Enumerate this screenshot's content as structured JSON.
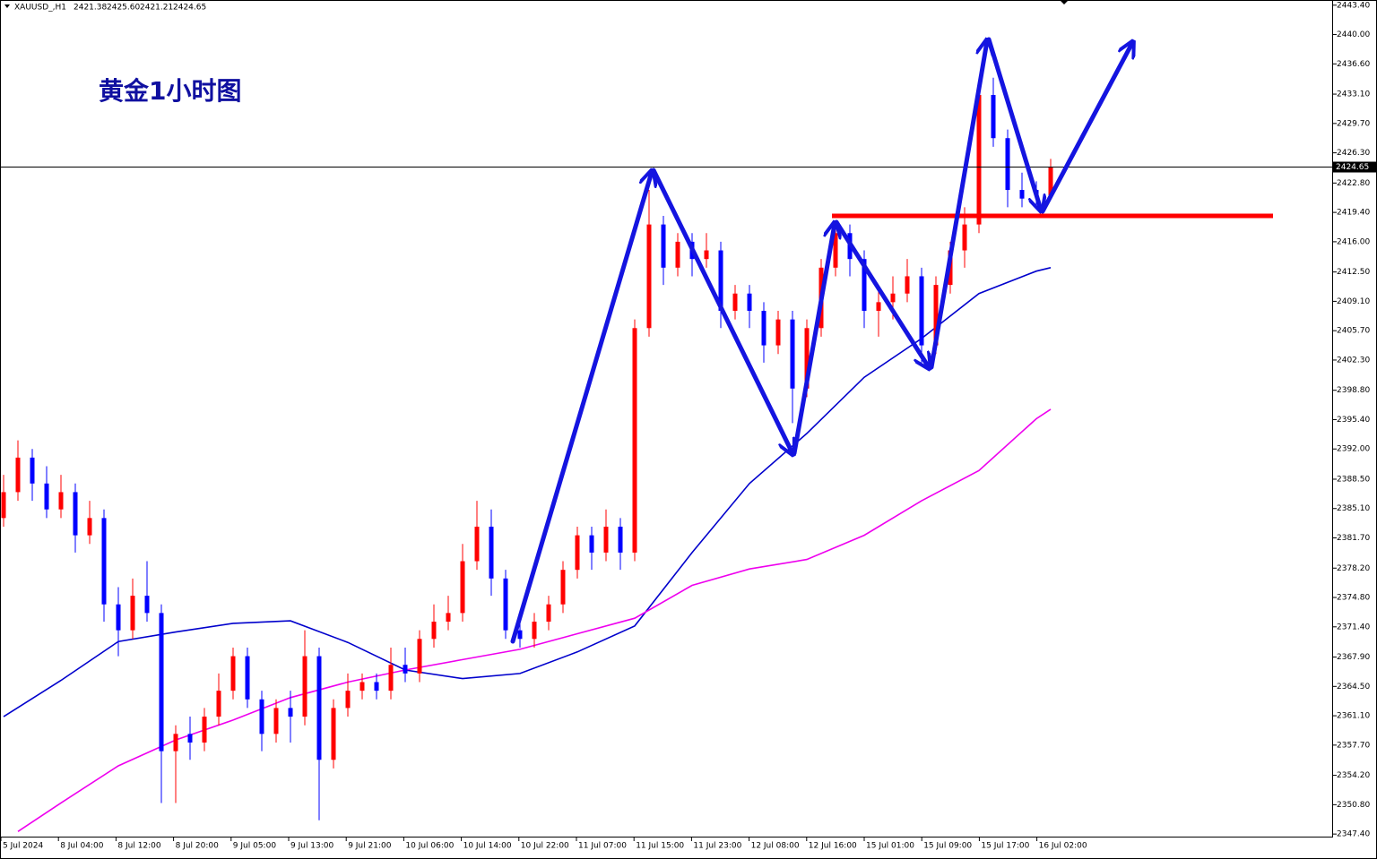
{
  "chart_data": {
    "type": "candlestick",
    "header": "XAUUSD_,H1",
    "header_values": [
      "2421.38",
      "2425.60",
      "2421.21",
      "2424.65"
    ],
    "title": "黄金1小时图",
    "up_color": "#ff0000",
    "down_color": "#0000ff",
    "ylim": [
      2347.0,
      2444.0
    ],
    "yticks": [
      {
        "value": 2443.4,
        "label": "2443.40"
      },
      {
        "value": 2440.0,
        "label": "2440.00"
      },
      {
        "value": 2436.6,
        "label": "2436.60"
      },
      {
        "value": 2433.1,
        "label": "2433.10"
      },
      {
        "value": 2429.7,
        "label": "2429.70"
      },
      {
        "value": 2426.3,
        "label": "2426.30"
      },
      {
        "value": 2422.8,
        "label": "2422.80"
      },
      {
        "value": 2419.4,
        "label": "2419.40"
      },
      {
        "value": 2416.0,
        "label": "2416.00"
      },
      {
        "value": 2412.5,
        "label": "2412.50"
      },
      {
        "value": 2409.1,
        "label": "2409.10"
      },
      {
        "value": 2405.7,
        "label": "2405.70"
      },
      {
        "value": 2402.3,
        "label": "2402.30"
      },
      {
        "value": 2398.8,
        "label": "2398.80"
      },
      {
        "value": 2395.4,
        "label": "2395.40"
      },
      {
        "value": 2392.0,
        "label": "2392.00"
      },
      {
        "value": 2388.5,
        "label": "2388.50"
      },
      {
        "value": 2385.1,
        "label": "2385.10"
      },
      {
        "value": 2381.7,
        "label": "2381.70"
      },
      {
        "value": 2378.2,
        "label": "2378.20"
      },
      {
        "value": 2374.8,
        "label": "2374.80"
      },
      {
        "value": 2371.4,
        "label": "2371.40"
      },
      {
        "value": 2367.9,
        "label": "2367.90"
      },
      {
        "value": 2364.5,
        "label": "2364.50"
      },
      {
        "value": 2361.1,
        "label": "2361.10"
      },
      {
        "value": 2357.7,
        "label": "2357.70"
      },
      {
        "value": 2354.2,
        "label": "2354.20"
      },
      {
        "value": 2350.8,
        "label": "2350.80"
      },
      {
        "value": 2347.4,
        "label": "2347.40"
      }
    ],
    "x_labels": [
      "5 Jul 2024",
      "8 Jul 04:00",
      "8 Jul 12:00",
      "8 Jul 20:00",
      "9 Jul 05:00",
      "9 Jul 13:00",
      "9 Jul 21:00",
      "10 Jul 06:00",
      "10 Jul 14:00",
      "10 Jul 22:00",
      "11 Jul 07:00",
      "11 Jul 15:00",
      "11 Jul 23:00",
      "12 Jul 08:00",
      "12 Jul 16:00",
      "15 Jul 01:00",
      "15 Jul 09:00",
      "15 Jul 17:00",
      "16 Jul 02:00"
    ],
    "current_price": {
      "value": 2424.65,
      "label": "2424.65"
    },
    "support_level": 2419.0,
    "candles": [
      {
        "o": 2384,
        "h": 2389,
        "l": 2383,
        "c": 2387
      },
      {
        "o": 2387,
        "h": 2393,
        "l": 2386,
        "c": 2391
      },
      {
        "o": 2391,
        "h": 2392,
        "l": 2386,
        "c": 2388
      },
      {
        "o": 2388,
        "h": 2390,
        "l": 2384,
        "c": 2385
      },
      {
        "o": 2385,
        "h": 2389,
        "l": 2384,
        "c": 2387
      },
      {
        "o": 2387,
        "h": 2388,
        "l": 2380,
        "c": 2382
      },
      {
        "o": 2382,
        "h": 2386,
        "l": 2381,
        "c": 2384
      },
      {
        "o": 2384,
        "h": 2385,
        "l": 2372,
        "c": 2374
      },
      {
        "o": 2374,
        "h": 2376,
        "l": 2368,
        "c": 2371
      },
      {
        "o": 2371,
        "h": 2377,
        "l": 2370,
        "c": 2375
      },
      {
        "o": 2375,
        "h": 2379,
        "l": 2372,
        "c": 2373
      },
      {
        "o": 2373,
        "h": 2374,
        "l": 2351,
        "c": 2357
      },
      {
        "o": 2357,
        "h": 2360,
        "l": 2351,
        "c": 2359
      },
      {
        "o": 2359,
        "h": 2361,
        "l": 2356,
        "c": 2358
      },
      {
        "o": 2358,
        "h": 2362,
        "l": 2357,
        "c": 2361
      },
      {
        "o": 2361,
        "h": 2366,
        "l": 2360,
        "c": 2364
      },
      {
        "o": 2364,
        "h": 2369,
        "l": 2363,
        "c": 2368
      },
      {
        "o": 2368,
        "h": 2369,
        "l": 2362,
        "c": 2363
      },
      {
        "o": 2363,
        "h": 2364,
        "l": 2357,
        "c": 2359
      },
      {
        "o": 2359,
        "h": 2363,
        "l": 2358,
        "c": 2362
      },
      {
        "o": 2362,
        "h": 2364,
        "l": 2358,
        "c": 2361
      },
      {
        "o": 2361,
        "h": 2371,
        "l": 2360,
        "c": 2368
      },
      {
        "o": 2368,
        "h": 2369,
        "l": 2349,
        "c": 2356
      },
      {
        "o": 2356,
        "h": 2363,
        "l": 2355,
        "c": 2362
      },
      {
        "o": 2362,
        "h": 2366,
        "l": 2361,
        "c": 2364
      },
      {
        "o": 2364,
        "h": 2366,
        "l": 2363,
        "c": 2365
      },
      {
        "o": 2365,
        "h": 2366,
        "l": 2363,
        "c": 2364
      },
      {
        "o": 2364,
        "h": 2369,
        "l": 2363,
        "c": 2367
      },
      {
        "o": 2367,
        "h": 2369,
        "l": 2365,
        "c": 2366
      },
      {
        "o": 2366,
        "h": 2371,
        "l": 2365,
        "c": 2370
      },
      {
        "o": 2370,
        "h": 2374,
        "l": 2369,
        "c": 2372
      },
      {
        "o": 2372,
        "h": 2375,
        "l": 2371,
        "c": 2373
      },
      {
        "o": 2373,
        "h": 2381,
        "l": 2372,
        "c": 2379
      },
      {
        "o": 2379,
        "h": 2386,
        "l": 2378,
        "c": 2383
      },
      {
        "o": 2383,
        "h": 2385,
        "l": 2375,
        "c": 2377
      },
      {
        "o": 2377,
        "h": 2378,
        "l": 2370,
        "c": 2371
      },
      {
        "o": 2371,
        "h": 2372,
        "l": 2369,
        "c": 2370
      },
      {
        "o": 2370,
        "h": 2373,
        "l": 2369,
        "c": 2372
      },
      {
        "o": 2372,
        "h": 2375,
        "l": 2371,
        "c": 2374
      },
      {
        "o": 2374,
        "h": 2379,
        "l": 2373,
        "c": 2378
      },
      {
        "o": 2378,
        "h": 2383,
        "l": 2377,
        "c": 2382
      },
      {
        "o": 2382,
        "h": 2383,
        "l": 2378,
        "c": 2380
      },
      {
        "o": 2380,
        "h": 2385,
        "l": 2379,
        "c": 2383
      },
      {
        "o": 2383,
        "h": 2384,
        "l": 2378,
        "c": 2380
      },
      {
        "o": 2380,
        "h": 2407,
        "l": 2379,
        "c": 2406
      },
      {
        "o": 2406,
        "h": 2422,
        "l": 2405,
        "c": 2418
      },
      {
        "o": 2418,
        "h": 2419,
        "l": 2411,
        "c": 2413
      },
      {
        "o": 2413,
        "h": 2417,
        "l": 2412,
        "c": 2416
      },
      {
        "o": 2416,
        "h": 2417,
        "l": 2412,
        "c": 2414
      },
      {
        "o": 2414,
        "h": 2417,
        "l": 2413,
        "c": 2415
      },
      {
        "o": 2415,
        "h": 2416,
        "l": 2406,
        "c": 2408
      },
      {
        "o": 2408,
        "h": 2411,
        "l": 2407,
        "c": 2410
      },
      {
        "o": 2410,
        "h": 2411,
        "l": 2406,
        "c": 2408
      },
      {
        "o": 2408,
        "h": 2409,
        "l": 2402,
        "c": 2404
      },
      {
        "o": 2404,
        "h": 2408,
        "l": 2403,
        "c": 2407
      },
      {
        "o": 2407,
        "h": 2408,
        "l": 2395,
        "c": 2399
      },
      {
        "o": 2399,
        "h": 2407,
        "l": 2398,
        "c": 2406
      },
      {
        "o": 2406,
        "h": 2414,
        "l": 2405,
        "c": 2413
      },
      {
        "o": 2413,
        "h": 2418,
        "l": 2412,
        "c": 2417
      },
      {
        "o": 2417,
        "h": 2418,
        "l": 2412,
        "c": 2414
      },
      {
        "o": 2414,
        "h": 2415,
        "l": 2406,
        "c": 2408
      },
      {
        "o": 2408,
        "h": 2411,
        "l": 2405,
        "c": 2409
      },
      {
        "o": 2409,
        "h": 2412,
        "l": 2407,
        "c": 2410
      },
      {
        "o": 2410,
        "h": 2414,
        "l": 2409,
        "c": 2412
      },
      {
        "o": 2412,
        "h": 2413,
        "l": 2402,
        "c": 2404
      },
      {
        "o": 2404,
        "h": 2412,
        "l": 2403,
        "c": 2411
      },
      {
        "o": 2411,
        "h": 2416,
        "l": 2410,
        "c": 2415
      },
      {
        "o": 2415,
        "h": 2420,
        "l": 2413,
        "c": 2418
      },
      {
        "o": 2418,
        "h": 2434,
        "l": 2417,
        "c": 2433
      },
      {
        "o": 2433,
        "h": 2435,
        "l": 2427,
        "c": 2428
      },
      {
        "o": 2428,
        "h": 2429,
        "l": 2420,
        "c": 2422
      },
      {
        "o": 2422,
        "h": 2424,
        "l": 2420,
        "c": 2421
      },
      {
        "o": 2422,
        "h": 2423,
        "l": 2420,
        "c": 2421.4
      },
      {
        "o": 2421.38,
        "h": 2425.6,
        "l": 2421.21,
        "c": 2424.65
      }
    ],
    "series": [
      {
        "color": "#0000cc",
        "x": [
          0,
          4,
          8,
          12,
          16,
          20,
          24,
          28,
          32,
          36,
          40,
          44,
          48,
          52,
          56,
          60,
          64,
          68,
          72,
          73
        ],
        "values": [
          2361.0,
          2365.2,
          2369.7,
          2370.8,
          2371.8,
          2372.1,
          2369.6,
          2366.4,
          2365.4,
          2366.0,
          2368.5,
          2371.5,
          2380.0,
          2388.0,
          2393.8,
          2400.3,
          2404.8,
          2410.0,
          2412.6,
          2413.0
        ]
      },
      {
        "color": "#ee00ee",
        "x": [
          1,
          4,
          8,
          12,
          16,
          20,
          24,
          28,
          32,
          36,
          40,
          44,
          48,
          52,
          56,
          60,
          64,
          68,
          72,
          73
        ],
        "values": [
          2347.7,
          2351.0,
          2355.3,
          2358.3,
          2360.6,
          2363.2,
          2365.0,
          2366.4,
          2367.6,
          2368.8,
          2370.6,
          2372.4,
          2376.2,
          2378.1,
          2379.2,
          2382.0,
          2386.0,
          2389.5,
          2395.5,
          2396.6
        ]
      }
    ]
  }
}
